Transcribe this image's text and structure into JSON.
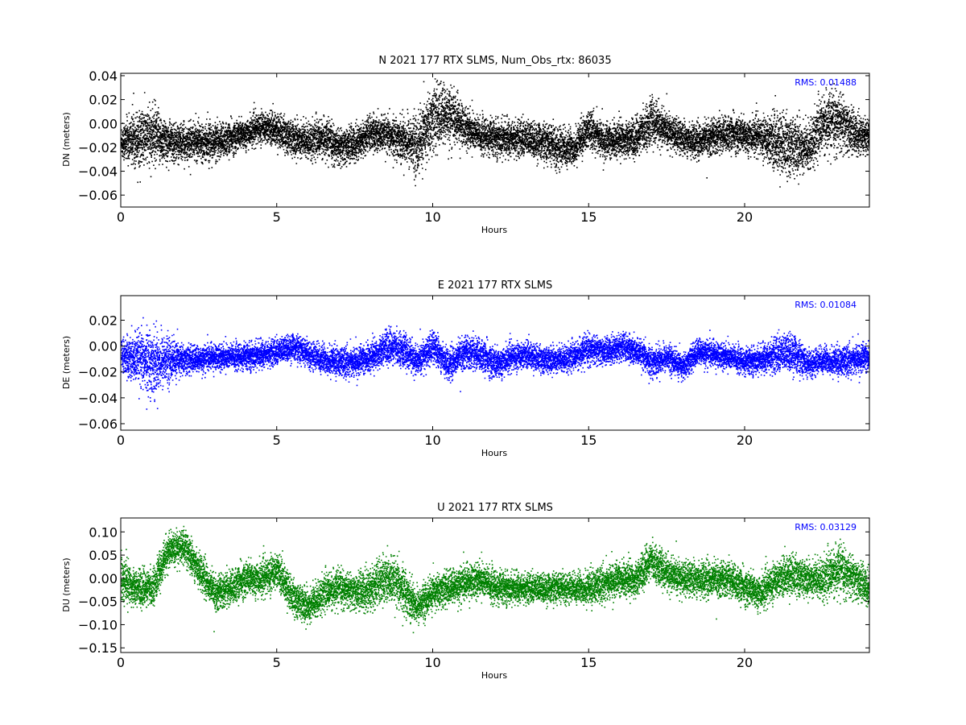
{
  "colors": {
    "n": "#000000",
    "e": "#0000ff",
    "u": "#008000",
    "rms": "#0000ff"
  },
  "chart_data": [
    {
      "type": "scatter",
      "title": "N 2021 177 RTX  SLMS, Num_Obs_rtx: 86035",
      "xlabel": "Hours",
      "ylabel": "DN (meters)",
      "xlim": [
        0,
        24
      ],
      "ylim": [
        -0.07,
        0.042
      ],
      "xticks": [
        "0",
        "5",
        "10",
        "15",
        "20"
      ],
      "yticks": [
        "0.04",
        "0.02",
        "0.00",
        "−0.02",
        "−0.04",
        "−0.06"
      ],
      "ytick_values": [
        0.04,
        0.02,
        0.0,
        -0.02,
        -0.04,
        -0.06
      ],
      "annotation": "RMS:  0.01488",
      "color": "#000000",
      "x": [
        0,
        0.5,
        1,
        1.5,
        2,
        2.5,
        3,
        3.5,
        4,
        4.5,
        5,
        5.5,
        6,
        6.5,
        7,
        7.5,
        8,
        8.5,
        9,
        9.5,
        10,
        10.5,
        11,
        11.5,
        12,
        12.5,
        13,
        13.5,
        14,
        14.5,
        15,
        15.5,
        16,
        16.5,
        17,
        17.5,
        18,
        18.5,
        19,
        19.5,
        20,
        20.5,
        21,
        21.5,
        22,
        22.5,
        23,
        23.5,
        24
      ],
      "center": [
        -0.015,
        -0.012,
        -0.01,
        -0.015,
        -0.016,
        -0.014,
        -0.015,
        -0.012,
        -0.008,
        -0.002,
        -0.005,
        -0.012,
        -0.014,
        -0.012,
        -0.02,
        -0.016,
        -0.008,
        -0.01,
        -0.012,
        -0.018,
        0.005,
        0.008,
        -0.002,
        -0.01,
        -0.012,
        -0.012,
        -0.012,
        -0.015,
        -0.02,
        -0.02,
        -0.004,
        -0.015,
        -0.012,
        -0.012,
        0.002,
        -0.006,
        -0.012,
        -0.014,
        -0.01,
        -0.008,
        -0.01,
        -0.01,
        -0.015,
        -0.018,
        -0.02,
        0.0,
        0.002,
        -0.008,
        -0.01
      ],
      "spread": [
        0.012,
        0.018,
        0.02,
        0.014,
        0.012,
        0.012,
        0.012,
        0.011,
        0.01,
        0.01,
        0.011,
        0.012,
        0.012,
        0.012,
        0.012,
        0.012,
        0.012,
        0.012,
        0.014,
        0.02,
        0.022,
        0.02,
        0.014,
        0.012,
        0.012,
        0.012,
        0.012,
        0.012,
        0.014,
        0.012,
        0.012,
        0.012,
        0.012,
        0.012,
        0.015,
        0.012,
        0.011,
        0.011,
        0.012,
        0.012,
        0.012,
        0.012,
        0.02,
        0.02,
        0.016,
        0.018,
        0.02,
        0.014,
        0.012
      ]
    },
    {
      "type": "scatter",
      "title": "E 2021 177 RTX  SLMS",
      "xlabel": "Hours",
      "ylabel": "DE (meters)",
      "xlim": [
        0,
        24
      ],
      "ylim": [
        -0.065,
        0.039
      ],
      "xticks": [
        "0",
        "5",
        "10",
        "15",
        "20"
      ],
      "yticks": [
        "0.02",
        "0.00",
        "−0.02",
        "−0.04",
        "−0.06"
      ],
      "ytick_values": [
        0.02,
        0.0,
        -0.02,
        -0.04,
        -0.06
      ],
      "annotation": "RMS:  0.01084",
      "color": "#0000ff",
      "x": [
        0,
        0.5,
        1,
        1.5,
        2,
        2.5,
        3,
        3.5,
        4,
        4.5,
        5,
        5.5,
        6,
        6.5,
        7,
        7.5,
        8,
        8.5,
        9,
        9.5,
        10,
        10.5,
        11,
        11.5,
        12,
        12.5,
        13,
        13.5,
        14,
        14.5,
        15,
        15.5,
        16,
        16.5,
        17,
        17.5,
        18,
        18.5,
        19,
        19.5,
        20,
        20.5,
        21,
        21.5,
        22,
        22.5,
        23,
        23.5,
        24
      ],
      "center": [
        -0.008,
        -0.01,
        -0.012,
        -0.01,
        -0.01,
        -0.01,
        -0.008,
        -0.008,
        -0.008,
        -0.006,
        -0.004,
        0.0,
        -0.006,
        -0.01,
        -0.012,
        -0.012,
        -0.008,
        0.0,
        -0.002,
        -0.012,
        0.0,
        -0.014,
        -0.004,
        -0.006,
        -0.014,
        -0.008,
        -0.006,
        -0.01,
        -0.01,
        -0.008,
        -0.002,
        -0.004,
        0.0,
        -0.004,
        -0.012,
        -0.008,
        -0.016,
        -0.004,
        -0.006,
        -0.008,
        -0.012,
        -0.01,
        -0.006,
        -0.004,
        -0.014,
        -0.01,
        -0.012,
        -0.01,
        -0.008
      ],
      "spread": [
        0.01,
        0.016,
        0.02,
        0.014,
        0.009,
        0.008,
        0.008,
        0.008,
        0.008,
        0.008,
        0.008,
        0.008,
        0.008,
        0.009,
        0.009,
        0.009,
        0.009,
        0.01,
        0.01,
        0.009,
        0.01,
        0.009,
        0.01,
        0.01,
        0.01,
        0.008,
        0.008,
        0.008,
        0.008,
        0.008,
        0.009,
        0.008,
        0.009,
        0.008,
        0.009,
        0.008,
        0.008,
        0.008,
        0.008,
        0.008,
        0.008,
        0.008,
        0.011,
        0.012,
        0.008,
        0.008,
        0.009,
        0.009,
        0.009
      ]
    },
    {
      "type": "scatter",
      "title": "U 2021 177 RTX  SLMS",
      "xlabel": "Hours",
      "ylabel": "DU (meters)",
      "xlim": [
        0,
        24
      ],
      "ylim": [
        -0.16,
        0.13
      ],
      "xticks": [
        "0",
        "5",
        "10",
        "15",
        "20"
      ],
      "yticks": [
        "0.10",
        "0.05",
        "0.00",
        "−0.05",
        "−0.10",
        "−0.15"
      ],
      "ytick_values": [
        0.1,
        0.05,
        0.0,
        -0.05,
        -0.1,
        -0.15
      ],
      "annotation": "RMS:  0.03129",
      "color": "#008000",
      "x": [
        0,
        0.5,
        1,
        1.5,
        2,
        2.5,
        3,
        3.5,
        4,
        4.5,
        5,
        5.5,
        6,
        6.5,
        7,
        7.5,
        8,
        8.5,
        9,
        9.5,
        10,
        10.5,
        11,
        11.5,
        12,
        12.5,
        13,
        13.5,
        14,
        14.5,
        15,
        15.5,
        16,
        16.5,
        17,
        17.5,
        18,
        18.5,
        19,
        19.5,
        20,
        20.5,
        21,
        21.5,
        22,
        22.5,
        23,
        23.5,
        24
      ],
      "center": [
        0.0,
        -0.02,
        -0.02,
        0.06,
        0.07,
        0.02,
        -0.03,
        -0.02,
        0.0,
        0.0,
        0.02,
        -0.04,
        -0.06,
        -0.03,
        -0.02,
        -0.03,
        -0.02,
        0.0,
        -0.02,
        -0.06,
        -0.03,
        -0.02,
        -0.01,
        0.0,
        -0.02,
        -0.02,
        -0.02,
        -0.02,
        -0.02,
        -0.02,
        -0.02,
        -0.01,
        0.0,
        0.0,
        0.04,
        0.01,
        0.0,
        0.0,
        0.0,
        0.0,
        -0.02,
        -0.03,
        0.0,
        0.01,
        0.0,
        0.0,
        0.02,
        0.0,
        -0.02
      ],
      "spread": [
        0.04,
        0.03,
        0.03,
        0.03,
        0.03,
        0.03,
        0.03,
        0.03,
        0.03,
        0.03,
        0.03,
        0.03,
        0.03,
        0.03,
        0.03,
        0.03,
        0.04,
        0.04,
        0.04,
        0.03,
        0.03,
        0.03,
        0.03,
        0.03,
        0.03,
        0.025,
        0.025,
        0.025,
        0.025,
        0.025,
        0.03,
        0.03,
        0.03,
        0.03,
        0.03,
        0.03,
        0.03,
        0.03,
        0.03,
        0.03,
        0.03,
        0.03,
        0.03,
        0.035,
        0.03,
        0.035,
        0.04,
        0.035,
        0.03
      ]
    }
  ]
}
